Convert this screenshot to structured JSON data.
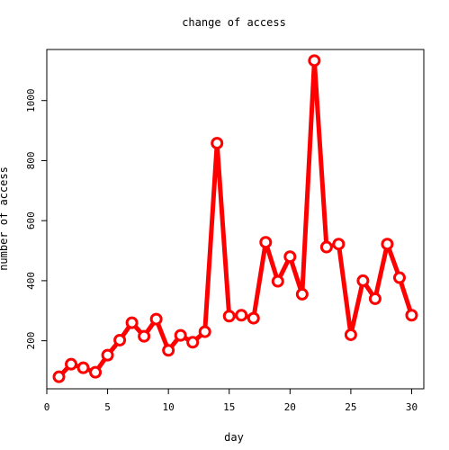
{
  "chart_data": {
    "type": "line",
    "title": "change of access",
    "xlabel": "day",
    "ylabel": "number of access",
    "x": [
      1,
      2,
      3,
      4,
      5,
      6,
      7,
      8,
      9,
      10,
      11,
      12,
      13,
      14,
      15,
      16,
      17,
      18,
      19,
      20,
      21,
      22,
      23,
      24,
      25,
      26,
      27,
      28,
      29,
      30
    ],
    "series": [
      {
        "values": [
          80,
          122,
          110,
          95,
          152,
          202,
          260,
          215,
          272,
          168,
          218,
          195,
          230,
          858,
          282,
          285,
          275,
          528,
          398,
          480,
          355,
          1133,
          512,
          522,
          220,
          400,
          340,
          522,
          410,
          285
        ],
        "color": "#ff0000"
      }
    ],
    "xlim": [
      0,
      31
    ],
    "ylim": [
      40,
      1170
    ],
    "xticks": [
      0,
      5,
      10,
      15,
      20,
      25,
      30
    ],
    "yticks": [
      200,
      400,
      600,
      800,
      1000
    ],
    "grid": false,
    "legend": "none"
  }
}
